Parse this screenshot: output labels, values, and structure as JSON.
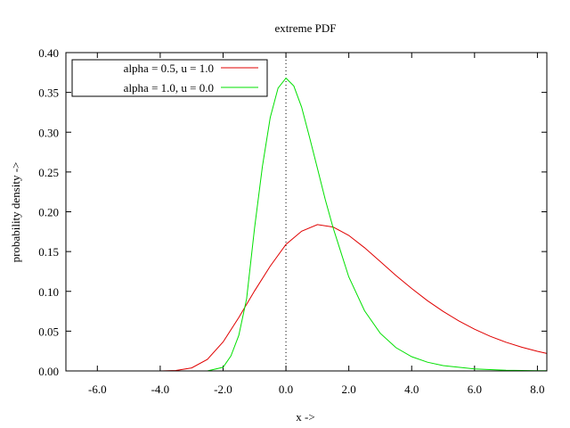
{
  "chart_data": {
    "type": "line",
    "title": "extreme PDF",
    "xlabel": "x ->",
    "ylabel": "probability density ->",
    "xlim": [
      -7.0,
      8.3
    ],
    "ylim": [
      0.0,
      0.4
    ],
    "x_ticks": [
      -6,
      -4,
      -2,
      0,
      2,
      4,
      6,
      8
    ],
    "x_tick_labels": [
      "-6.0",
      "-4.0",
      "-2.0",
      "0.0",
      "2.0",
      "4.0",
      "6.0",
      "8.0"
    ],
    "y_ticks": [
      0.0,
      0.05,
      0.1,
      0.15,
      0.2,
      0.25,
      0.3,
      0.35,
      0.4
    ],
    "y_tick_labels": [
      "0.00",
      "0.05",
      "0.10",
      "0.15",
      "0.20",
      "0.25",
      "0.30",
      "0.35",
      "0.40"
    ],
    "grid": false,
    "zero_axis": true,
    "legend_position": "top-left",
    "series": [
      {
        "name": "alpha = 0.5, u = 1.0",
        "color": "#e00000",
        "x": [
          -7.0,
          -6.0,
          -5.0,
          -4.0,
          -3.5,
          -3.0,
          -2.5,
          -2.0,
          -1.5,
          -1.0,
          -0.5,
          0.0,
          0.5,
          1.0,
          1.5,
          2.0,
          2.5,
          3.0,
          3.5,
          4.0,
          4.5,
          5.0,
          5.5,
          6.0,
          6.5,
          7.0,
          7.5,
          8.0,
          8.3
        ],
        "y": [
          0.0,
          0.0,
          0.0,
          0.0,
          0.0006,
          0.0038,
          0.0145,
          0.0364,
          0.0671,
          0.1005,
          0.1317,
          0.159,
          0.1756,
          0.1839,
          0.1808,
          0.1703,
          0.1548,
          0.1375,
          0.1199,
          0.1036,
          0.0883,
          0.0748,
          0.0629,
          0.0524,
          0.0435,
          0.0361,
          0.0298,
          0.0246,
          0.022
        ]
      },
      {
        "name": "alpha = 1.0, u = 0.0",
        "color": "#00e000",
        "x": [
          -7.0,
          -4.0,
          -3.0,
          -2.5,
          -2.0,
          -1.75,
          -1.5,
          -1.25,
          -1.0,
          -0.75,
          -0.5,
          -0.25,
          0.0,
          0.25,
          0.5,
          0.75,
          1.0,
          1.25,
          1.5,
          2.0,
          2.5,
          3.0,
          3.5,
          4.0,
          4.5,
          5.0,
          6.0,
          7.0,
          8.0,
          8.3
        ],
        "y": [
          0.0,
          0.0,
          0.0,
          0.0,
          0.0046,
          0.0188,
          0.0446,
          0.0907,
          0.1794,
          0.2567,
          0.3183,
          0.3554,
          0.3679,
          0.3581,
          0.3313,
          0.2938,
          0.2546,
          0.2155,
          0.18,
          0.1182,
          0.0756,
          0.0474,
          0.0292,
          0.0179,
          0.011,
          0.0067,
          0.0025,
          0.0009,
          0.0003,
          0.0002
        ]
      }
    ]
  }
}
